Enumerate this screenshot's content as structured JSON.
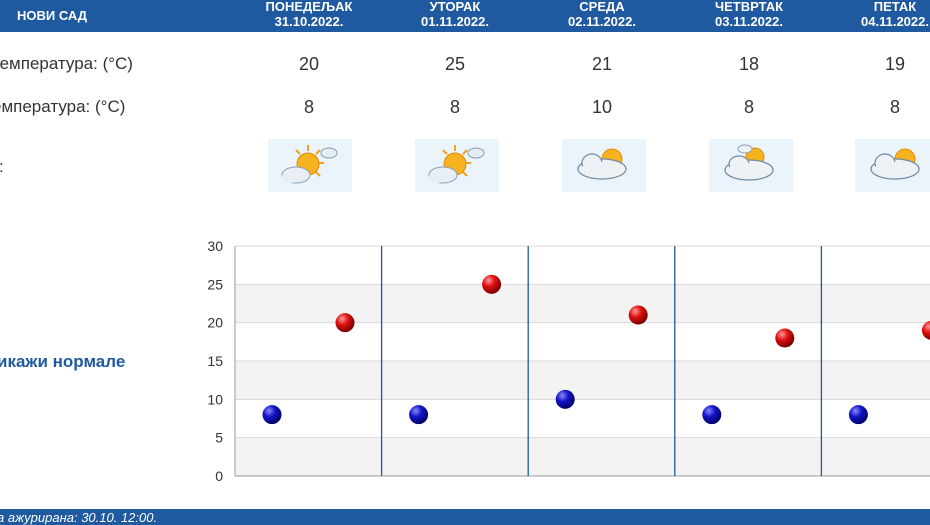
{
  "header": {
    "city": "НОВИ САД"
  },
  "days": [
    {
      "name": "ПОНЕДЕЉАК",
      "date": "31.10.2022.",
      "max": "20",
      "min": "8",
      "icon": "sun-behind-cloud-icon"
    },
    {
      "name": "УТОРАК",
      "date": "01.11.2022.",
      "max": "25",
      "min": "8",
      "icon": "sun-behind-cloud-icon"
    },
    {
      "name": "СРЕДА",
      "date": "02.11.2022.",
      "max": "21",
      "min": "10",
      "icon": "cloud-sun-icon"
    },
    {
      "name": "ЧЕТВРТАК",
      "date": "03.11.2022.",
      "max": "18",
      "min": "8",
      "icon": "cloud-small-sun-icon"
    },
    {
      "name": "ПЕТАК",
      "date": "04.11.2022.",
      "max": "19",
      "min": "8",
      "icon": "cloud-sun-icon"
    }
  ],
  "labels": {
    "max_temp": "температура: (°C)",
    "min_temp": "емпература: (°C)",
    "weather": ":"
  },
  "show_normals": "икажи нормале",
  "footer": {
    "updated": "а ажурирана:  30.10. 12:00."
  },
  "colors": {
    "accent": "#1f5aa0",
    "max_dot": "#d10000",
    "min_dot": "#1010b0"
  },
  "chart_data": {
    "type": "scatter",
    "ylim": [
      0,
      30
    ],
    "yticks": [
      "0",
      "5",
      "10",
      "15",
      "20",
      "25",
      "30"
    ],
    "series": [
      {
        "values": [
          20,
          25,
          21,
          18,
          19
        ]
      },
      {
        "values": [
          8,
          8,
          10,
          8,
          8
        ]
      }
    ]
  }
}
